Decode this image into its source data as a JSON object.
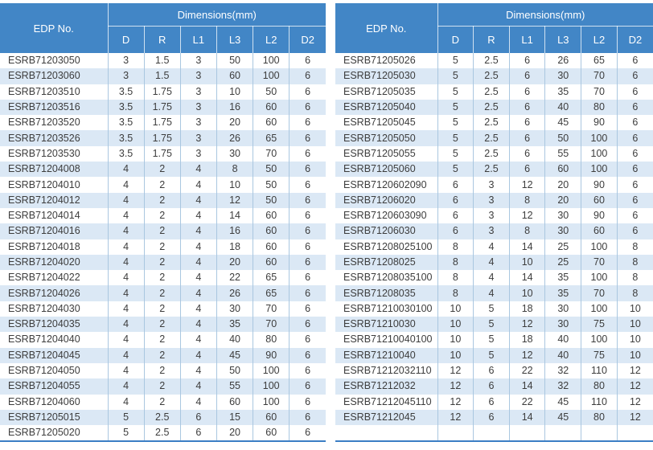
{
  "colors": {
    "header_bg": "#4286c6",
    "header_text": "#ffffff",
    "row_alt_bg": "#dbe8f5",
    "row_bg": "#ffffff",
    "column_line": "#aac7e0",
    "bottom_border": "#3b7ec5",
    "body_text": "#3d3d3d"
  },
  "tables": [
    {
      "header": {
        "edp_label": "EDP No.",
        "dimensions_label": "Dimensions(mm)",
        "columns": [
          "D",
          "R",
          "L1",
          "L3",
          "L2",
          "D2"
        ]
      },
      "rows": [
        [
          "ESRB71203050",
          "3",
          "1.5",
          "3",
          "50",
          "100",
          "6"
        ],
        [
          "ESRB71203060",
          "3",
          "1.5",
          "3",
          "60",
          "100",
          "6"
        ],
        [
          "ESRB71203510",
          "3.5",
          "1.75",
          "3",
          "10",
          "50",
          "6"
        ],
        [
          "ESRB71203516",
          "3.5",
          "1.75",
          "3",
          "16",
          "60",
          "6"
        ],
        [
          "ESRB71203520",
          "3.5",
          "1.75",
          "3",
          "20",
          "60",
          "6"
        ],
        [
          "ESRB71203526",
          "3.5",
          "1.75",
          "3",
          "26",
          "65",
          "6"
        ],
        [
          "ESRB71203530",
          "3.5",
          "1.75",
          "3",
          "30",
          "70",
          "6"
        ],
        [
          "ESRB71204008",
          "4",
          "2",
          "4",
          "8",
          "50",
          "6"
        ],
        [
          "ESRB71204010",
          "4",
          "2",
          "4",
          "10",
          "50",
          "6"
        ],
        [
          "ESRB71204012",
          "4",
          "2",
          "4",
          "12",
          "50",
          "6"
        ],
        [
          "ESRB71204014",
          "4",
          "2",
          "4",
          "14",
          "60",
          "6"
        ],
        [
          "ESRB71204016",
          "4",
          "2",
          "4",
          "16",
          "60",
          "6"
        ],
        [
          "ESRB71204018",
          "4",
          "2",
          "4",
          "18",
          "60",
          "6"
        ],
        [
          "ESRB71204020",
          "4",
          "2",
          "4",
          "20",
          "60",
          "6"
        ],
        [
          "ESRB71204022",
          "4",
          "2",
          "4",
          "22",
          "65",
          "6"
        ],
        [
          "ESRB71204026",
          "4",
          "2",
          "4",
          "26",
          "65",
          "6"
        ],
        [
          "ESRB71204030",
          "4",
          "2",
          "4",
          "30",
          "70",
          "6"
        ],
        [
          "ESRB71204035",
          "4",
          "2",
          "4",
          "35",
          "70",
          "6"
        ],
        [
          "ESRB71204040",
          "4",
          "2",
          "4",
          "40",
          "80",
          "6"
        ],
        [
          "ESRB71204045",
          "4",
          "2",
          "4",
          "45",
          "90",
          "6"
        ],
        [
          "ESRB71204050",
          "4",
          "2",
          "4",
          "50",
          "100",
          "6"
        ],
        [
          "ESRB71204055",
          "4",
          "2",
          "4",
          "55",
          "100",
          "6"
        ],
        [
          "ESRB71204060",
          "4",
          "2",
          "4",
          "60",
          "100",
          "6"
        ],
        [
          "ESRB71205015",
          "5",
          "2.5",
          "6",
          "15",
          "60",
          "6"
        ],
        [
          "ESRB71205020",
          "5",
          "2.5",
          "6",
          "20",
          "60",
          "6"
        ]
      ]
    },
    {
      "header": {
        "edp_label": "EDP No.",
        "dimensions_label": "Dimensions(mm)",
        "columns": [
          "D",
          "R",
          "L1",
          "L3",
          "L2",
          "D2"
        ]
      },
      "rows": [
        [
          "ESRB71205026",
          "5",
          "2.5",
          "6",
          "26",
          "65",
          "6"
        ],
        [
          "ESRB71205030",
          "5",
          "2.5",
          "6",
          "30",
          "70",
          "6"
        ],
        [
          "ESRB71205035",
          "5",
          "2.5",
          "6",
          "35",
          "70",
          "6"
        ],
        [
          "ESRB71205040",
          "5",
          "2.5",
          "6",
          "40",
          "80",
          "6"
        ],
        [
          "ESRB71205045",
          "5",
          "2.5",
          "6",
          "45",
          "90",
          "6"
        ],
        [
          "ESRB71205050",
          "5",
          "2.5",
          "6",
          "50",
          "100",
          "6"
        ],
        [
          "ESRB71205055",
          "5",
          "2.5",
          "6",
          "55",
          "100",
          "6"
        ],
        [
          "ESRB71205060",
          "5",
          "2.5",
          "6",
          "60",
          "100",
          "6"
        ],
        [
          "ESRB7120602090",
          "6",
          "3",
          "12",
          "20",
          "90",
          "6"
        ],
        [
          "ESRB71206020",
          "6",
          "3",
          "8",
          "20",
          "60",
          "6"
        ],
        [
          "ESRB7120603090",
          "6",
          "3",
          "12",
          "30",
          "90",
          "6"
        ],
        [
          "ESRB71206030",
          "6",
          "3",
          "8",
          "30",
          "60",
          "6"
        ],
        [
          "ESRB71208025100",
          "8",
          "4",
          "14",
          "25",
          "100",
          "8"
        ],
        [
          "ESRB71208025",
          "8",
          "4",
          "10",
          "25",
          "70",
          "8"
        ],
        [
          "ESRB71208035100",
          "8",
          "4",
          "14",
          "35",
          "100",
          "8"
        ],
        [
          "ESRB71208035",
          "8",
          "4",
          "10",
          "35",
          "70",
          "8"
        ],
        [
          "ESRB71210030100",
          "10",
          "5",
          "18",
          "30",
          "100",
          "10"
        ],
        [
          "ESRB71210030",
          "10",
          "5",
          "12",
          "30",
          "75",
          "10"
        ],
        [
          "ESRB71210040100",
          "10",
          "5",
          "18",
          "40",
          "100",
          "10"
        ],
        [
          "ESRB71210040",
          "10",
          "5",
          "12",
          "40",
          "75",
          "10"
        ],
        [
          "ESRB71212032110",
          "12",
          "6",
          "22",
          "32",
          "110",
          "12"
        ],
        [
          "ESRB71212032",
          "12",
          "6",
          "14",
          "32",
          "80",
          "12"
        ],
        [
          "ESRB71212045110",
          "12",
          "6",
          "22",
          "45",
          "110",
          "12"
        ],
        [
          "ESRB71212045",
          "12",
          "6",
          "14",
          "45",
          "80",
          "12"
        ]
      ]
    }
  ]
}
